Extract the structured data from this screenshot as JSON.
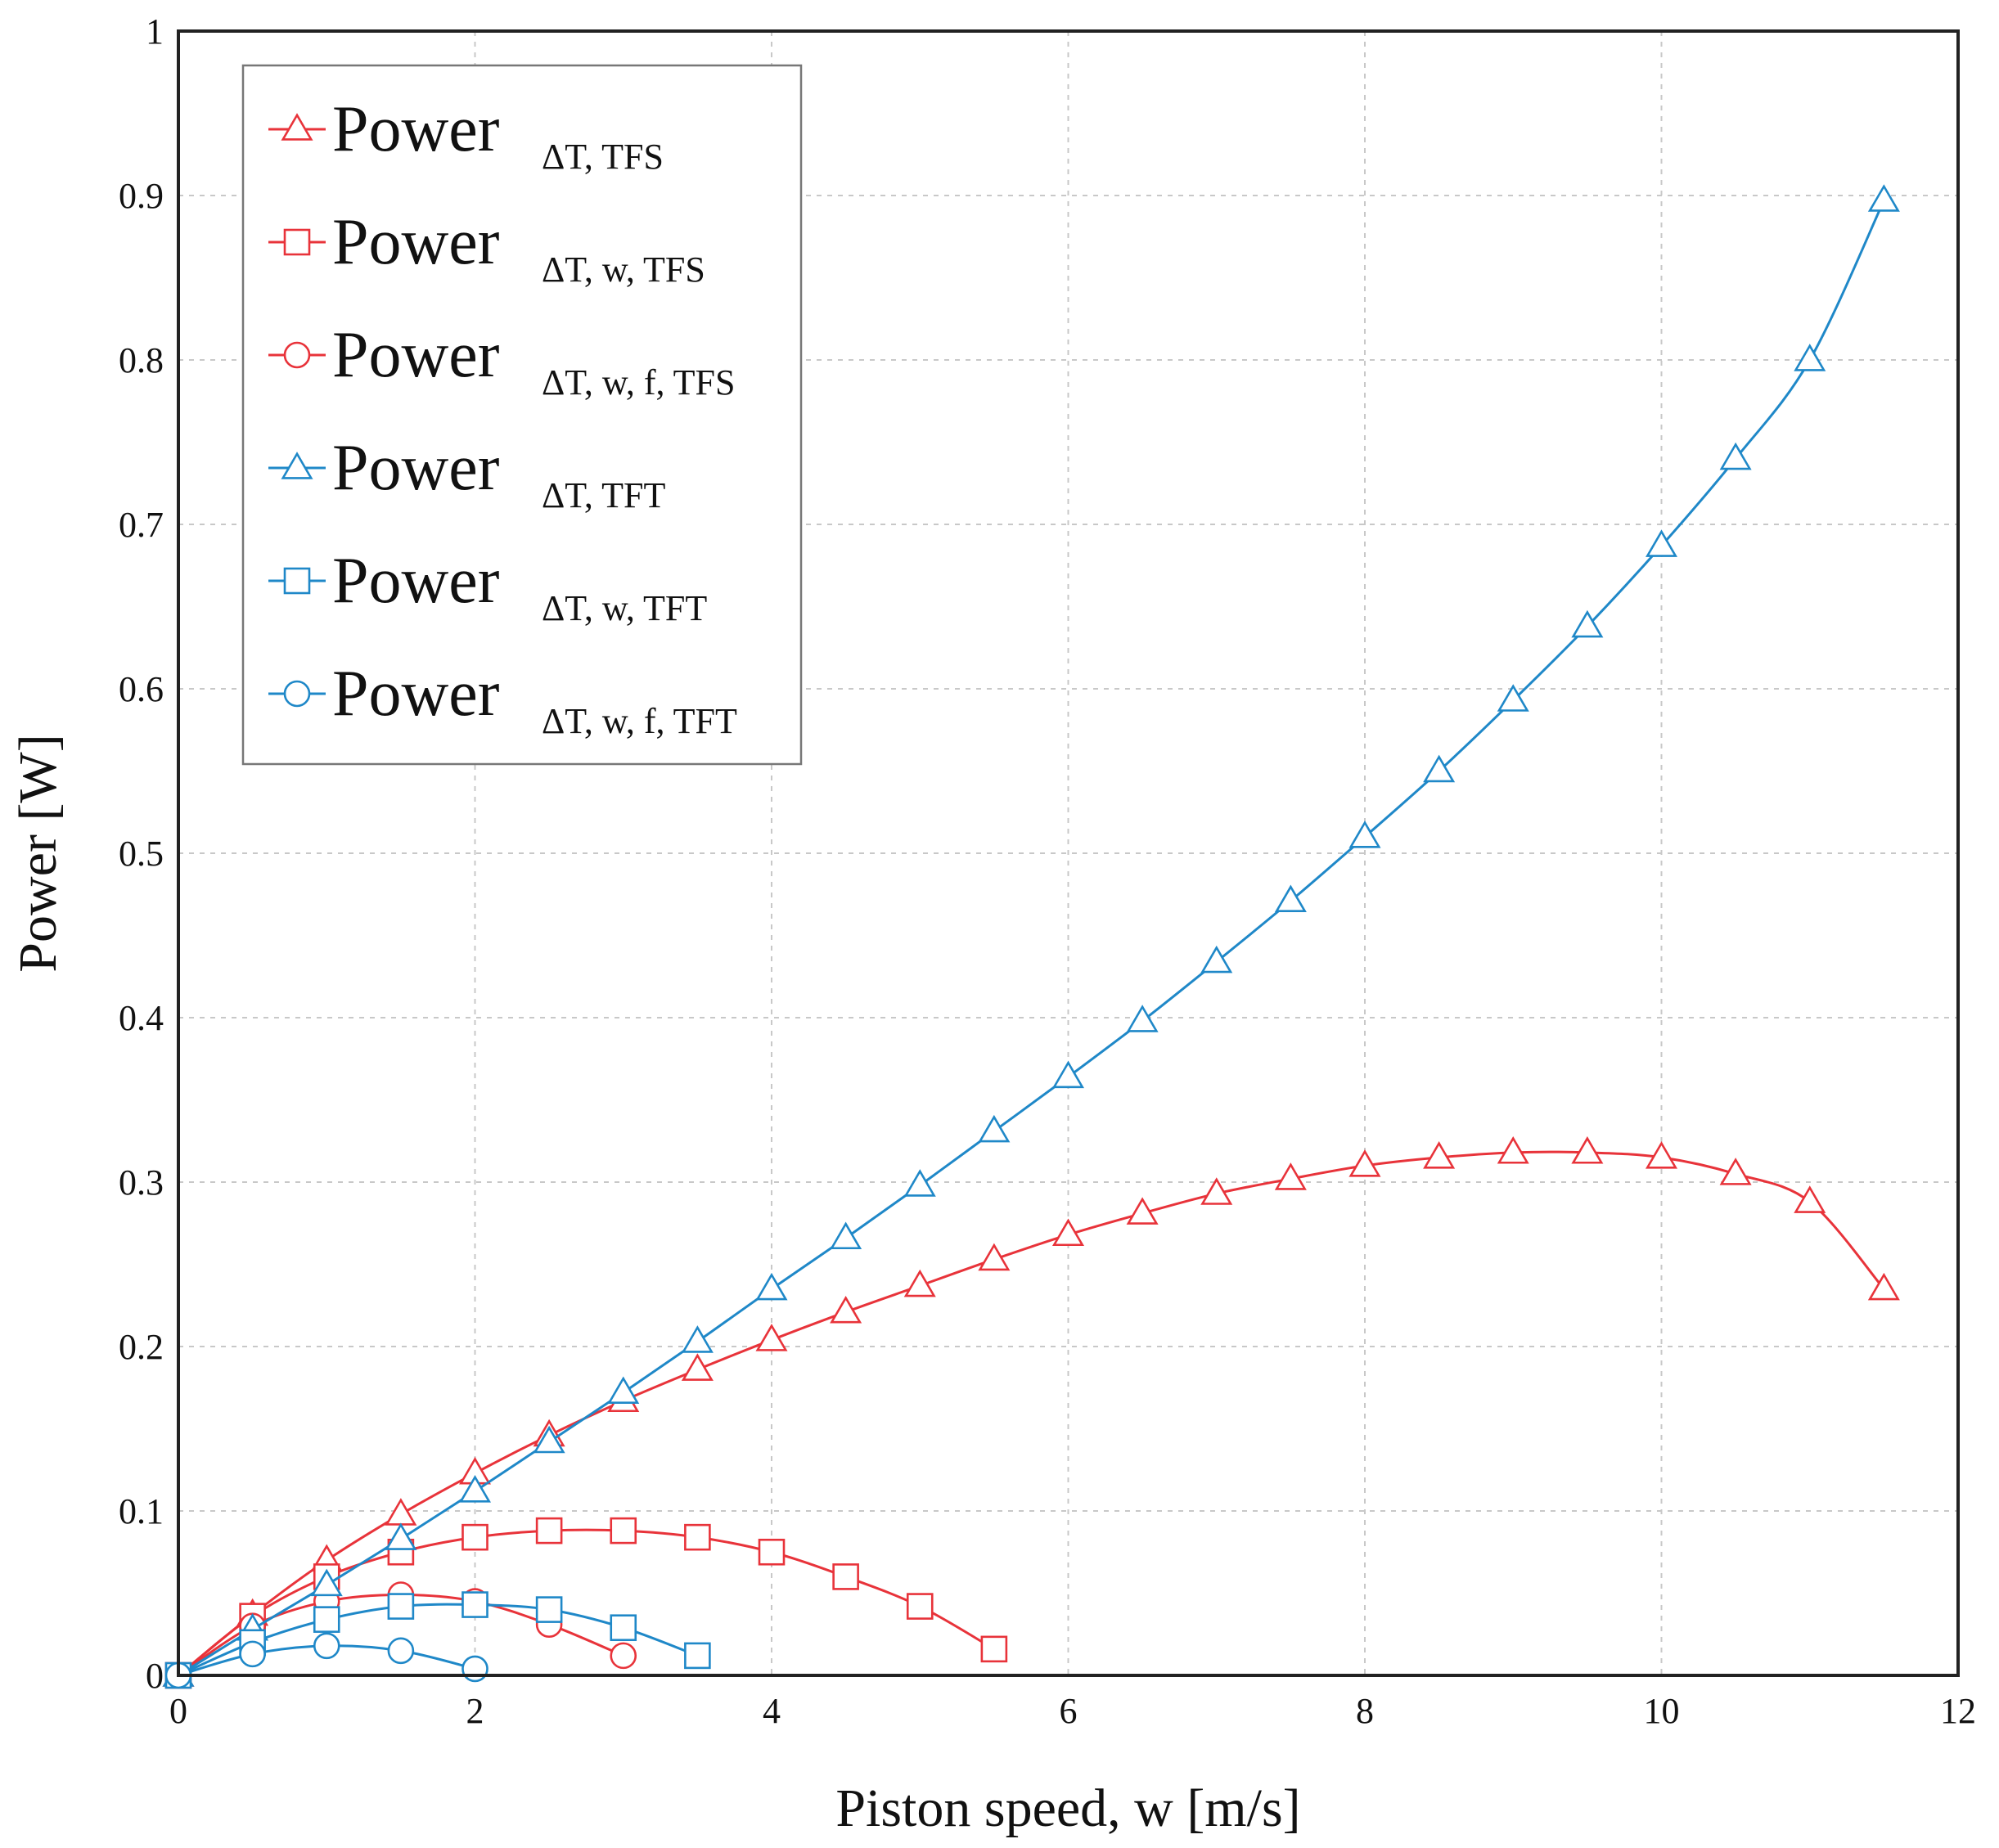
{
  "chart_data": {
    "type": "line",
    "title": "",
    "xlabel": "Piston speed, w [m/s]",
    "ylabel": "Power [W]",
    "xlim": [
      0,
      12
    ],
    "ylim": [
      0,
      1
    ],
    "xticks": [
      0,
      2,
      4,
      6,
      8,
      10,
      12
    ],
    "yticks": [
      0,
      0.1,
      0.2,
      0.3,
      0.4,
      0.5,
      0.6,
      0.7,
      0.8,
      0.9,
      1
    ],
    "xtick_labels": [
      "0",
      "2",
      "4",
      "6",
      "8",
      "10",
      "12"
    ],
    "ytick_labels": [
      "0",
      "0.1",
      "0.2",
      "0.3",
      "0.4",
      "0.5",
      "0.6",
      "0.7",
      "0.8",
      "0.9",
      "1"
    ],
    "grid": true,
    "legend_position": "top-left",
    "series": [
      {
        "name": "Power ΔT, TFS",
        "main": "Power",
        "sub": "ΔT, TFS",
        "color": "#e8333a",
        "marker": "triangle",
        "x": [
          0,
          0.5,
          1,
          1.5,
          2,
          2.5,
          3,
          3.5,
          4,
          4.5,
          5,
          5.5,
          6,
          6.5,
          7,
          7.5,
          8,
          8.5,
          9,
          9.5,
          10,
          10.5,
          11,
          11.5
        ],
        "y": [
          0,
          0.037,
          0.07,
          0.098,
          0.123,
          0.146,
          0.167,
          0.186,
          0.204,
          0.221,
          0.237,
          0.253,
          0.268,
          0.281,
          0.293,
          0.302,
          0.31,
          0.315,
          0.318,
          0.318,
          0.315,
          0.305,
          0.288,
          0.235
        ]
      },
      {
        "name": "Power ΔT, w, TFS",
        "main": "Power",
        "sub": "ΔT, w, TFS",
        "color": "#e8333a",
        "marker": "square",
        "x": [
          0,
          0.5,
          1,
          1.5,
          2,
          2.5,
          3,
          3.5,
          4,
          4.5,
          5,
          5.5
        ],
        "y": [
          0,
          0.036,
          0.06,
          0.075,
          0.084,
          0.088,
          0.088,
          0.084,
          0.075,
          0.06,
          0.042,
          0.016
        ]
      },
      {
        "name": "Power ΔT, w, f, TFS",
        "main": "Power",
        "sub": "ΔT, w, f, TFS",
        "color": "#e8333a",
        "marker": "circle",
        "x": [
          0,
          0.5,
          1,
          1.5,
          2,
          2.5,
          3
        ],
        "y": [
          0,
          0.03,
          0.045,
          0.049,
          0.045,
          0.031,
          0.012
        ]
      },
      {
        "name": "Power ΔT, TFT",
        "main": "Power",
        "sub": "ΔT, TFT",
        "color": "#1f88c8",
        "marker": "triangle",
        "x": [
          0,
          0.5,
          1,
          1.5,
          2,
          2.5,
          3,
          3.5,
          4,
          4.5,
          5,
          5.5,
          6,
          6.5,
          7,
          7.5,
          8,
          8.5,
          9,
          9.5,
          10,
          10.5,
          11,
          11.5
        ],
        "y": [
          0,
          0.028,
          0.055,
          0.083,
          0.112,
          0.142,
          0.172,
          0.203,
          0.235,
          0.266,
          0.298,
          0.331,
          0.364,
          0.398,
          0.434,
          0.471,
          0.51,
          0.55,
          0.593,
          0.638,
          0.687,
          0.74,
          0.8,
          0.897
        ]
      },
      {
        "name": "Power ΔT, w, TFT",
        "main": "Power",
        "sub": "ΔT, w, TFT",
        "color": "#1f88c8",
        "marker": "square",
        "x": [
          0,
          0.5,
          1,
          1.5,
          2,
          2.5,
          3,
          3.5
        ],
        "y": [
          0,
          0.02,
          0.034,
          0.042,
          0.043,
          0.04,
          0.029,
          0.012
        ]
      },
      {
        "name": "Power ΔT, w, f, TFT",
        "main": "Power",
        "sub": "ΔT, w, f, TFT",
        "color": "#1f88c8",
        "marker": "circle",
        "x": [
          0,
          0.5,
          1,
          1.5,
          2
        ],
        "y": [
          0,
          0.013,
          0.018,
          0.015,
          0.004
        ]
      }
    ]
  }
}
